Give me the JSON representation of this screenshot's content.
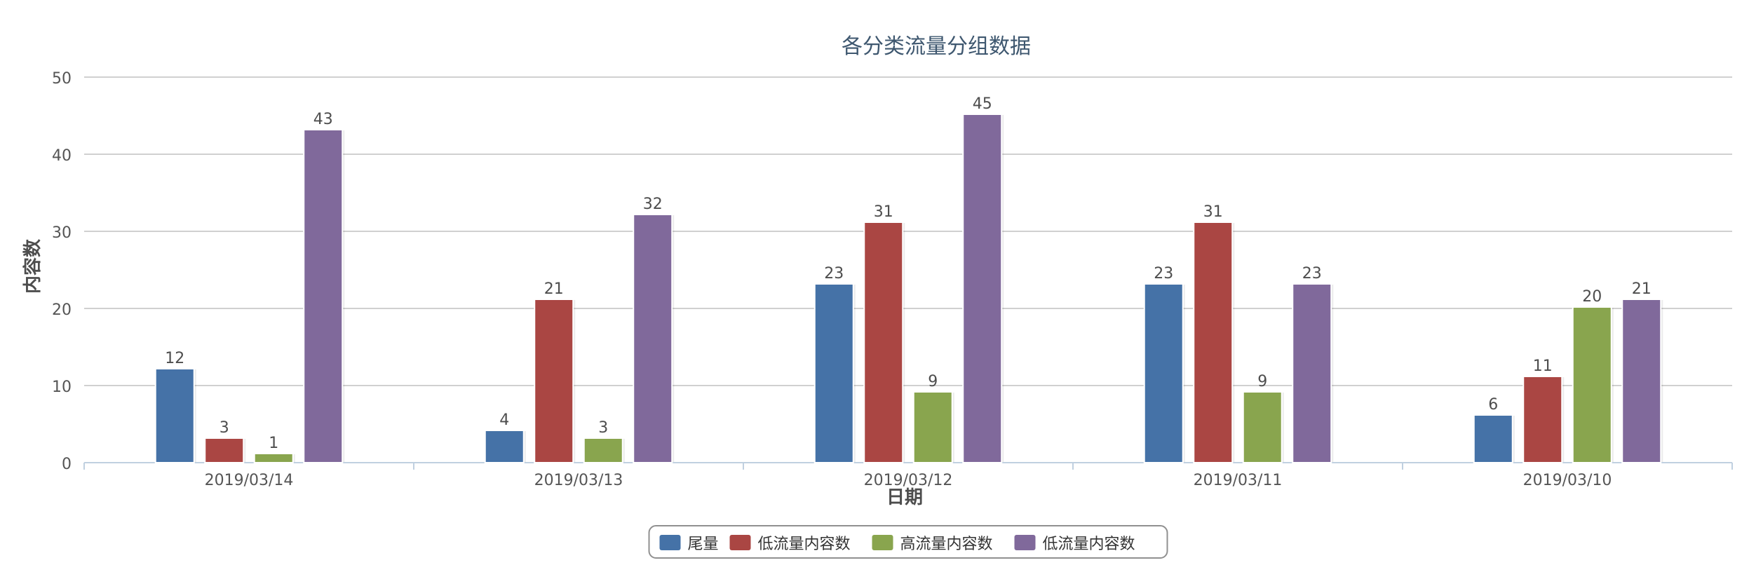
{
  "chart_data": {
    "type": "bar",
    "title": "各分类流量分组数据",
    "xlabel": "日期",
    "ylabel": "内容数",
    "categories": [
      "2019/03/14",
      "2019/03/13",
      "2019/03/12",
      "2019/03/11",
      "2019/03/10"
    ],
    "ylim": [
      0,
      50
    ],
    "yticks": [
      0,
      10,
      20,
      30,
      40,
      50
    ],
    "grid": true,
    "legend_position": "bottom-center",
    "series": [
      {
        "name": "尾量",
        "color": "#4572a7",
        "values": [
          12,
          4,
          23,
          23,
          6
        ]
      },
      {
        "name": "低流量内容数",
        "color": "#aa4643",
        "values": [
          3,
          21,
          31,
          31,
          11
        ]
      },
      {
        "name": "高流量内容数",
        "color": "#89a54e",
        "values": [
          1,
          3,
          9,
          9,
          20
        ]
      },
      {
        "name": "低流量内容数",
        "color": "#80699b",
        "values": [
          43,
          32,
          45,
          23,
          21
        ]
      }
    ]
  }
}
